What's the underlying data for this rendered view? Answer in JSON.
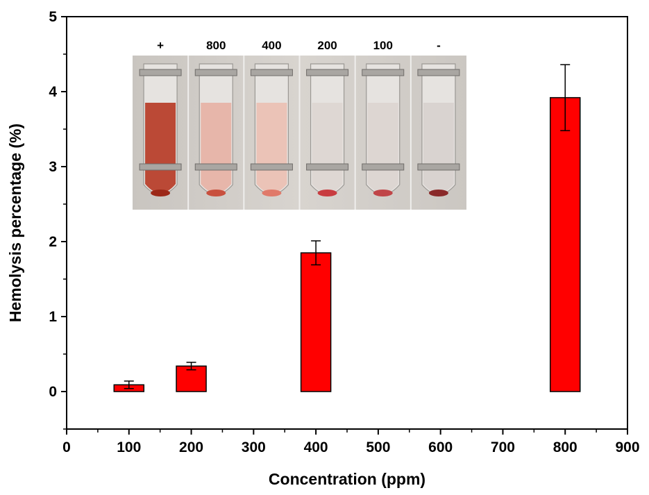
{
  "chart_data": {
    "type": "bar",
    "xlabel": "Concentration (ppm)",
    "ylabel": "Hemolysis percentage (%)",
    "xlim": [
      0,
      900
    ],
    "ylim": [
      -0.5,
      5
    ],
    "xticks": [
      "0",
      "100",
      "200",
      "300",
      "400",
      "500",
      "600",
      "700",
      "800",
      "900"
    ],
    "yticks": [
      "0",
      "1",
      "2",
      "3",
      "4",
      "5"
    ],
    "x": [
      100,
      200,
      400,
      800
    ],
    "values": [
      0.09,
      0.34,
      1.85,
      3.92
    ],
    "errors": [
      0.05,
      0.05,
      0.16,
      0.44
    ],
    "bar_color": "#ff0000",
    "grid": false,
    "inset": {
      "labels": [
        "+",
        "800",
        "400",
        "200",
        "100",
        "-"
      ],
      "liquid_colors": [
        "#b8402c",
        "#e7b3a6",
        "#ebc1b4",
        "#ddd6d2",
        "#dcd5d1",
        "#d8d2cf"
      ],
      "pellet_colors": [
        "#9c2818",
        "#c8503e",
        "#e07a6a",
        "#c83c40",
        "#c04548",
        "#8a2a2a"
      ]
    }
  }
}
